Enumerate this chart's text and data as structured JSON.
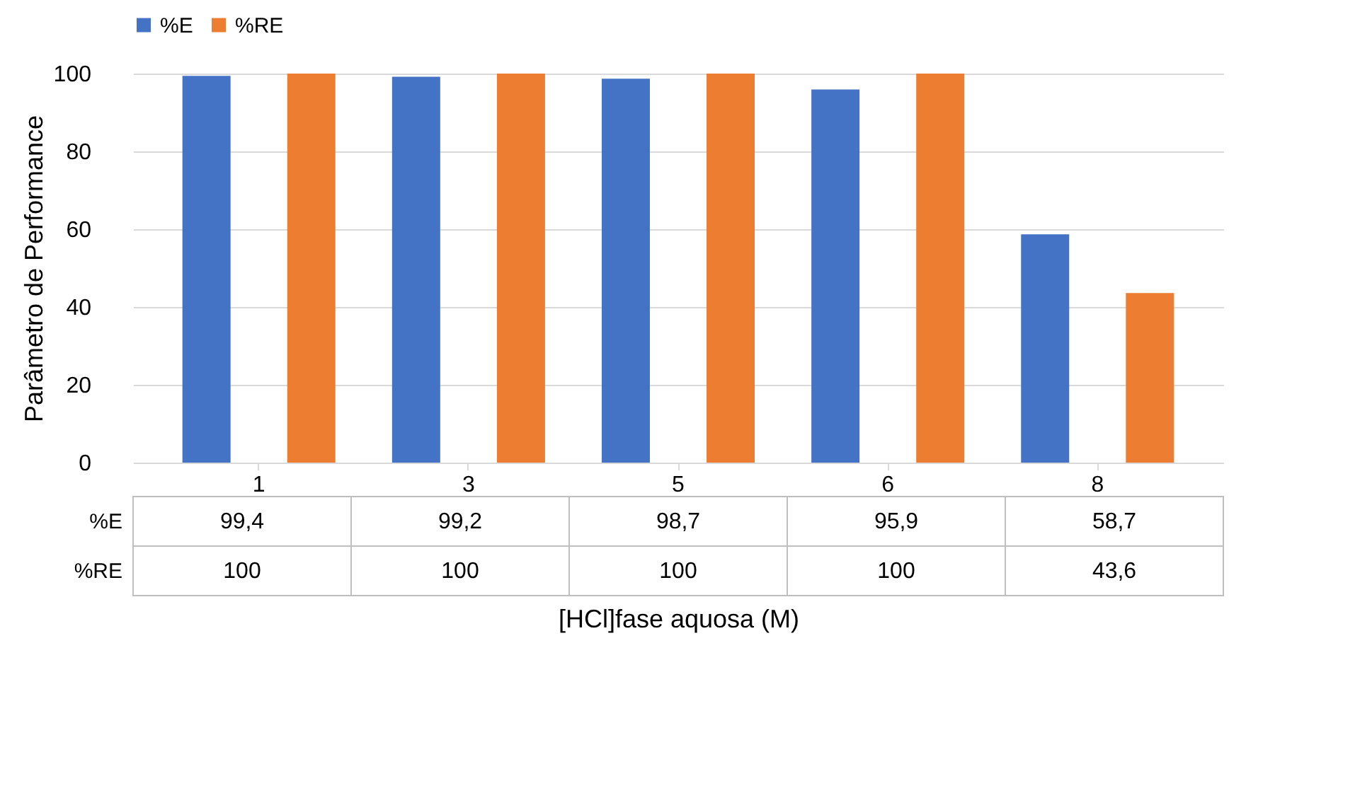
{
  "chart_data": {
    "type": "bar",
    "ylabel": "Parâmetro de Performance",
    "xlabel": "[HCl]fase aquosa (M)",
    "categories": [
      "1",
      "3",
      "5",
      "6",
      "8"
    ],
    "series": [
      {
        "name": "%E",
        "color": "#4472c4",
        "values": [
          99.4,
          99.2,
          98.7,
          95.9,
          58.7
        ],
        "value_labels": [
          "99,4",
          "99,2",
          "98,7",
          "95,9",
          "58,7"
        ]
      },
      {
        "name": "%RE",
        "color": "#ed7d31",
        "values": [
          100,
          100,
          100,
          100,
          43.6
        ],
        "value_labels": [
          "100",
          "100",
          "100",
          "100",
          "43,6"
        ]
      }
    ],
    "ylim": [
      0,
      100
    ],
    "yticks": [
      0,
      20,
      40,
      60,
      80,
      100
    ],
    "grid": "y",
    "legend": "top"
  }
}
